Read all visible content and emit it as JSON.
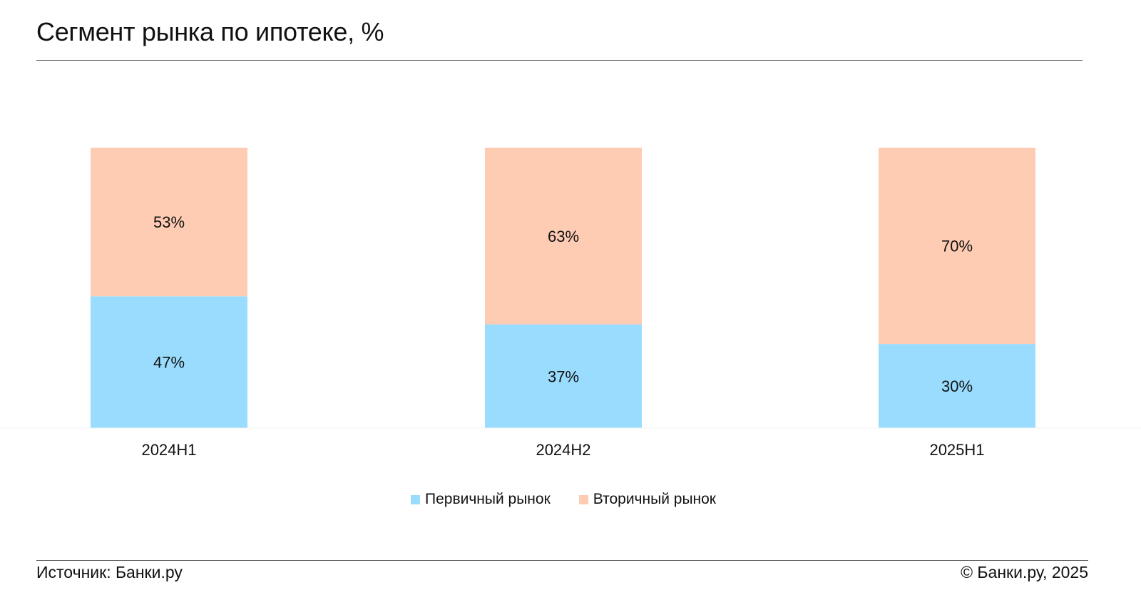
{
  "title": "Сегмент рынка по ипотеке, %",
  "colors": {
    "primary": "#99dcfd",
    "secondary": "#fecbb3",
    "text": "#111111"
  },
  "chart_data": {
    "type": "bar",
    "stacked": true,
    "categories": [
      "2024H1",
      "2024H2",
      "2025H1"
    ],
    "series": [
      {
        "name": "Первичный рынок",
        "values": [
          47,
          37,
          30
        ],
        "color": "#99dcfd"
      },
      {
        "name": "Вторичный рынок",
        "values": [
          53,
          63,
          70
        ],
        "color": "#fecbb3"
      }
    ],
    "data_labels": {
      "Первичный рынок": [
        "47%",
        "37%",
        "30%"
      ],
      "Вторичный рынок": [
        "53%",
        "63%",
        "70%"
      ]
    },
    "ylim": [
      0,
      100
    ],
    "grid": false,
    "legend_position": "bottom"
  },
  "legend": {
    "items": [
      "Первичный рынок",
      "Вторичный рынок"
    ]
  },
  "footer": {
    "source": "Источник: Банки.ру",
    "copyright": "© Банки.ру, 2025"
  }
}
